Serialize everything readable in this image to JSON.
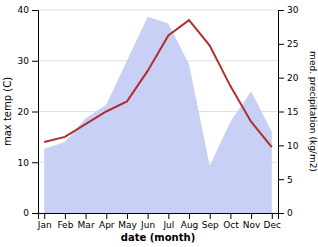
{
  "chart_data": {
    "type": "line",
    "x_label": "date (month)",
    "y_label": "max temp (C)",
    "y2_label": "med. precipitation (kg/m2)",
    "categories": [
      "Jan",
      "Feb",
      "Mar",
      "Apr",
      "May",
      "Jun",
      "Jul",
      "Aug",
      "Sep",
      "Oct",
      "Nov",
      "Dec"
    ],
    "series": [
      {
        "type": "area",
        "axis": "y2",
        "color": "#c8d0f5",
        "values": [
          9.5,
          10.5,
          14.0,
          16.0,
          22.5,
          29.0,
          28.0,
          22.0,
          7.0,
          13.5,
          18.0,
          12.0
        ]
      },
      {
        "type": "line",
        "color": "#b03030",
        "values": [
          14.0,
          15.0,
          17.5,
          20.0,
          22.0,
          28.0,
          35.0,
          38.0,
          33.0,
          25.0,
          18.0,
          13.0
        ]
      }
    ],
    "ylim": [
      0,
      40
    ],
    "yticks": [
      0,
      10,
      20,
      30,
      40
    ],
    "y2lim": [
      0,
      30
    ],
    "y2ticks": [
      0,
      5,
      10,
      15,
      20,
      25,
      30
    ],
    "grid": true
  }
}
